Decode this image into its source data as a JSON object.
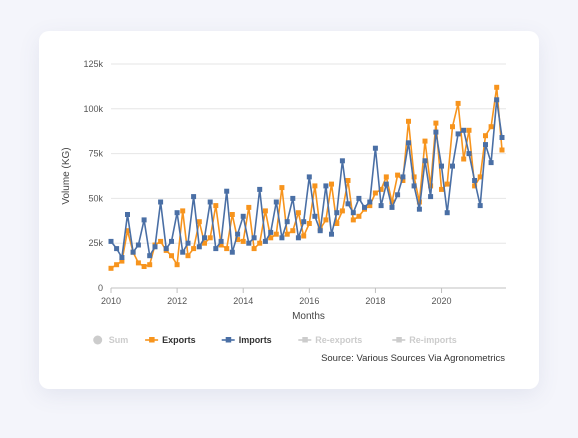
{
  "chart_data": {
    "type": "line",
    "title": "",
    "xlabel": "Months",
    "ylabel": "Volume (KG)",
    "xlim": [
      2010,
      2021.95
    ],
    "ylim": [
      0,
      125000
    ],
    "x_ticks": [
      2010,
      2012,
      2014,
      2016,
      2018,
      2020
    ],
    "x_tick_labels": [
      "2010",
      "2012",
      "2014",
      "2016",
      "2018",
      "2020"
    ],
    "y_ticks": [
      0,
      25000,
      50000,
      75000,
      100000,
      125000
    ],
    "y_tick_labels": [
      "0",
      "25k",
      "50k",
      "75k",
      "100k",
      "125k"
    ],
    "grid": "horizontal",
    "legend_position": "bottom",
    "legend": [
      {
        "name": "Sum",
        "enabled": false,
        "color": "#cccccc",
        "marker": "circle"
      },
      {
        "name": "Exports",
        "enabled": true,
        "color": "#f7941d",
        "marker": "square"
      },
      {
        "name": "Imports",
        "enabled": true,
        "color": "#4a6fa5",
        "marker": "square"
      },
      {
        "name": "Re-exports",
        "enabled": false,
        "color": "#cccccc",
        "marker": "square"
      },
      {
        "name": "Re-imports",
        "enabled": false,
        "color": "#cccccc",
        "marker": "square"
      }
    ],
    "series": [
      {
        "name": "Exports",
        "color": "#f7941d",
        "x": [
          2010.0,
          2010.17,
          2010.33,
          2010.5,
          2010.67,
          2010.83,
          2011.0,
          2011.17,
          2011.33,
          2011.5,
          2011.67,
          2011.83,
          2012.0,
          2012.17,
          2012.33,
          2012.5,
          2012.67,
          2012.83,
          2013.0,
          2013.17,
          2013.33,
          2013.5,
          2013.67,
          2013.83,
          2014.0,
          2014.17,
          2014.33,
          2014.5,
          2014.67,
          2014.83,
          2015.0,
          2015.17,
          2015.33,
          2015.5,
          2015.67,
          2015.83,
          2016.0,
          2016.17,
          2016.33,
          2016.5,
          2016.67,
          2016.83,
          2017.0,
          2017.17,
          2017.33,
          2017.5,
          2017.67,
          2017.83,
          2018.0,
          2018.17,
          2018.33,
          2018.5,
          2018.67,
          2018.83,
          2019.0,
          2019.17,
          2019.33,
          2019.5,
          2019.67,
          2019.83,
          2020.0,
          2020.17,
          2020.33,
          2020.5,
          2020.67,
          2020.83,
          2021.0,
          2021.17,
          2021.33,
          2021.5,
          2021.67,
          2021.83
        ],
        "y": [
          11000,
          13000,
          15000,
          32000,
          20000,
          14000,
          12000,
          13000,
          24000,
          26000,
          21000,
          18000,
          13000,
          43000,
          18000,
          22000,
          37000,
          25000,
          28000,
          46000,
          24000,
          22000,
          41000,
          27000,
          26000,
          45000,
          22000,
          25000,
          43000,
          28000,
          30000,
          56000,
          30000,
          32000,
          42000,
          29000,
          36000,
          57000,
          33000,
          38000,
          58000,
          36000,
          43000,
          60000,
          38000,
          40000,
          44000,
          46000,
          53000,
          55000,
          62000,
          48000,
          63000,
          60000,
          93000,
          62000,
          48000,
          82000,
          57000,
          92000,
          55000,
          58000,
          90000,
          103000,
          72000,
          88000,
          57000,
          62000,
          85000,
          90000,
          112000,
          77000
        ]
      },
      {
        "name": "Imports",
        "color": "#4a6fa5",
        "x": [
          2010.0,
          2010.17,
          2010.33,
          2010.5,
          2010.67,
          2010.83,
          2011.0,
          2011.17,
          2011.33,
          2011.5,
          2011.67,
          2011.83,
          2012.0,
          2012.17,
          2012.33,
          2012.5,
          2012.67,
          2012.83,
          2013.0,
          2013.17,
          2013.33,
          2013.5,
          2013.67,
          2013.83,
          2014.0,
          2014.17,
          2014.33,
          2014.5,
          2014.67,
          2014.83,
          2015.0,
          2015.17,
          2015.33,
          2015.5,
          2015.67,
          2015.83,
          2016.0,
          2016.17,
          2016.33,
          2016.5,
          2016.67,
          2016.83,
          2017.0,
          2017.17,
          2017.33,
          2017.5,
          2017.67,
          2017.83,
          2018.0,
          2018.17,
          2018.33,
          2018.5,
          2018.67,
          2018.83,
          2019.0,
          2019.17,
          2019.33,
          2019.5,
          2019.67,
          2019.83,
          2020.0,
          2020.17,
          2020.33,
          2020.5,
          2020.67,
          2020.83,
          2021.0,
          2021.17,
          2021.33,
          2021.5,
          2021.67,
          2021.83
        ],
        "y": [
          26000,
          22000,
          17000,
          41000,
          20000,
          24000,
          38000,
          18000,
          23000,
          48000,
          22000,
          26000,
          42000,
          20000,
          25000,
          51000,
          23000,
          28000,
          48000,
          22000,
          26000,
          54000,
          20000,
          30000,
          40000,
          25000,
          28000,
          55000,
          26000,
          31000,
          48000,
          28000,
          37000,
          50000,
          28000,
          37000,
          62000,
          40000,
          32000,
          57000,
          30000,
          42000,
          71000,
          47000,
          42000,
          50000,
          45000,
          48000,
          78000,
          46000,
          58000,
          45000,
          52000,
          62000,
          81000,
          57000,
          44000,
          71000,
          51000,
          87000,
          68000,
          42000,
          68000,
          86000,
          88000,
          75000,
          60000,
          46000,
          80000,
          70000,
          105000,
          84000
        ]
      }
    ],
    "source": "Source: Various Sources Via Agronometrics"
  }
}
